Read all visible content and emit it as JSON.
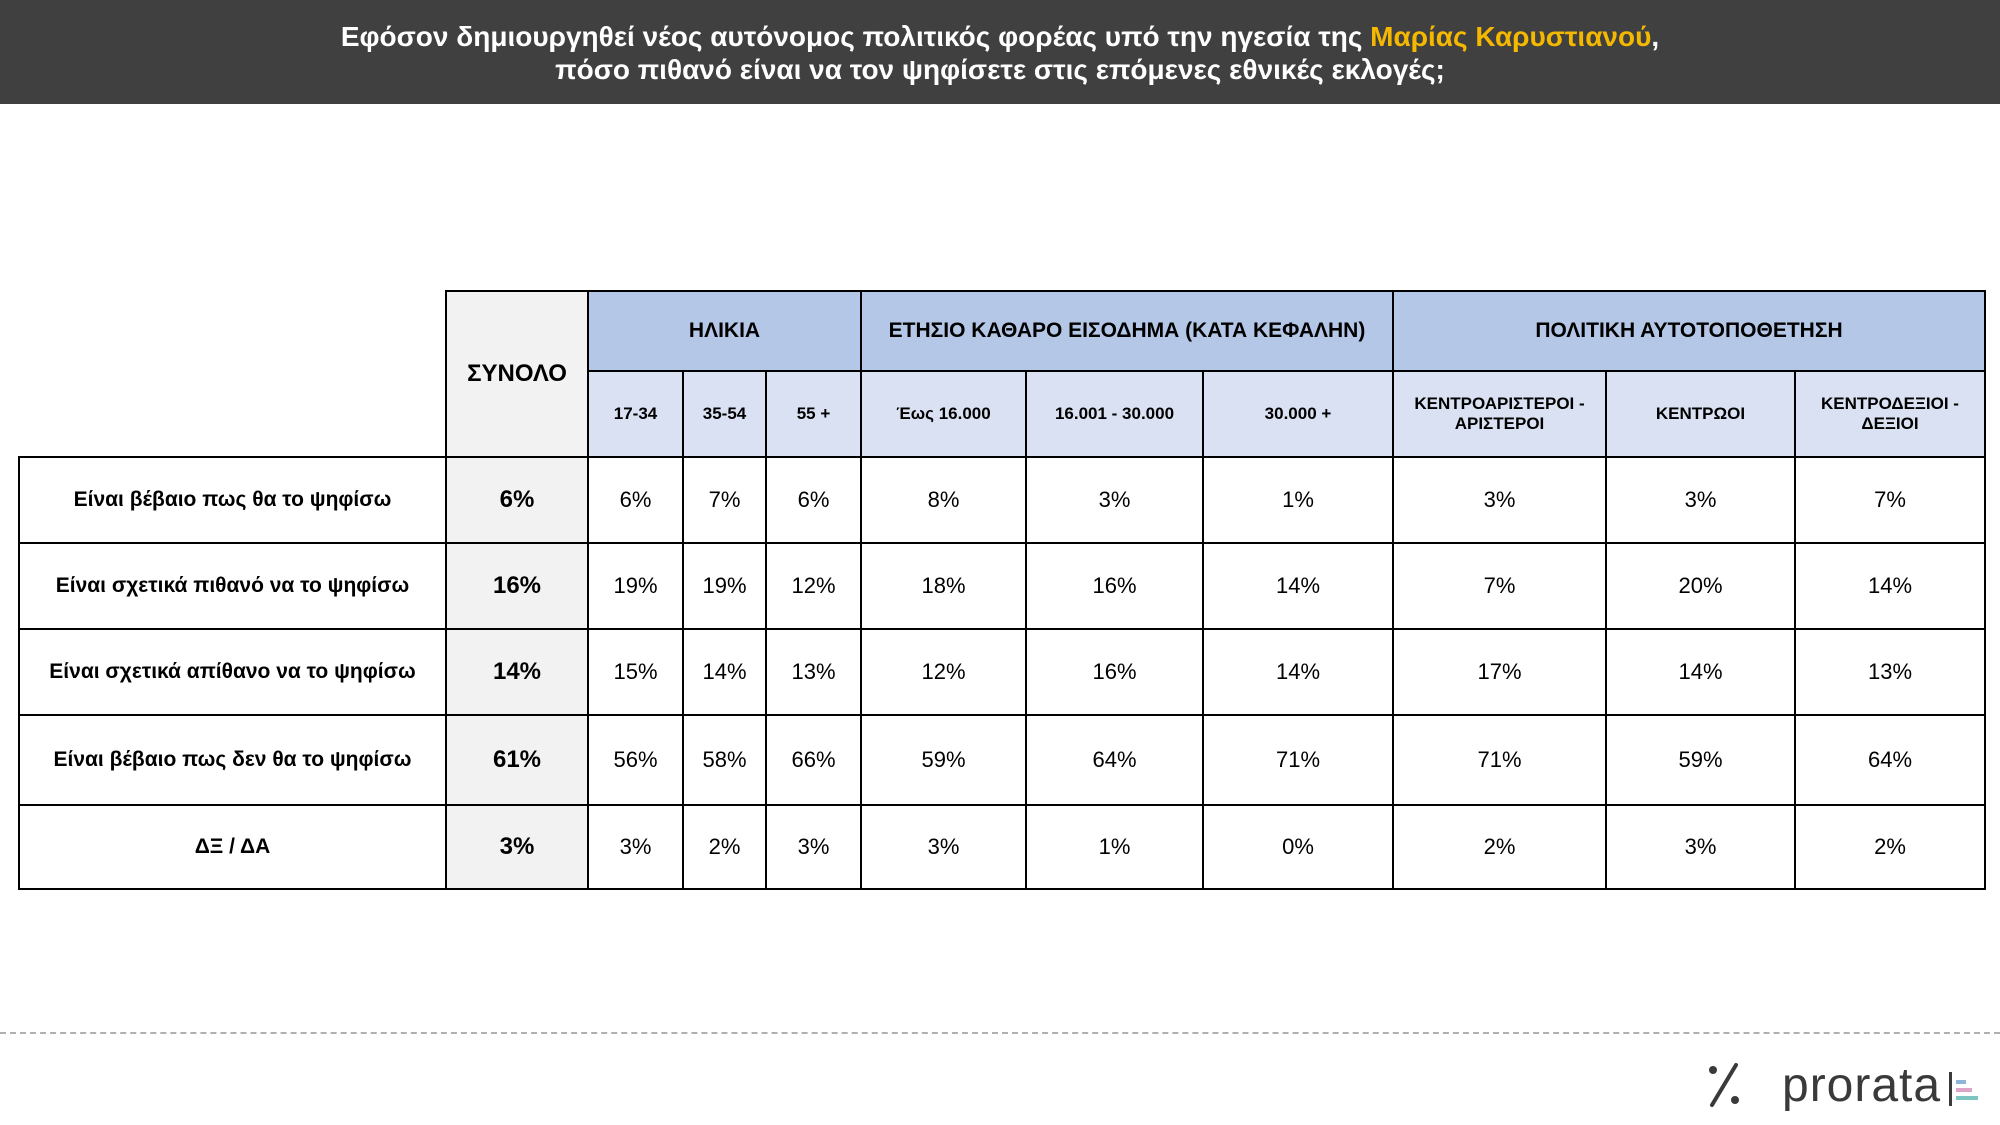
{
  "title": {
    "line1_prefix": "Εφόσον δημιουργηθεί νέος αυτόνομος πολιτικός φορέας υπό την ηγεσία της",
    "line1_highlight": "Μαρίας Καρυστιανού",
    "line1_suffix": ",",
    "line2": "πόσο πιθανό είναι να τον ψηφίσετε στις επόμενες εθνικές εκλογές;",
    "highlight_color": "#f5b800"
  },
  "logo": {
    "text": "prorata",
    "symbol": "%"
  },
  "colors": {
    "header_bar": "#404040",
    "group_header": "#b4c7e7",
    "sub_header": "#d9e1f2",
    "total_column": "#f2f2f2"
  },
  "chart_data": {
    "type": "table",
    "total_label": "ΣΥΝΟΛΟ",
    "groups": [
      {
        "label": "ΗΛΙΚΙΑ",
        "columns": [
          "17-34",
          "35-54",
          "55 +"
        ]
      },
      {
        "label": "ΕΤΗΣΙΟ ΚΑΘΑΡΟ ΕΙΣΟΔΗΜΑ (ΚΑΤΑ ΚΕΦΑΛΗΝ)",
        "columns": [
          "Έως 16.000",
          "16.001 - 30.000",
          "30.000 +"
        ]
      },
      {
        "label": "ΠΟΛΙΤΙΚΗ ΑΥΤΟΤΟΠΟΘΕΤΗΣΗ",
        "columns": [
          "ΚΕΝΤΡΟΑΡΙΣΤΕΡΟΙ - ΑΡΙΣΤΕΡΟΙ",
          "ΚΕΝΤΡΩΟΙ",
          "ΚΕΝΤΡΟΔΕΞΙΟΙ - ΔΕΞΙΟΙ"
        ]
      }
    ],
    "rows": [
      {
        "label": "Είναι βέβαιο πως θα το ψηφίσω",
        "total": "6%",
        "values": [
          "6%",
          "7%",
          "6%",
          "8%",
          "3%",
          "1%",
          "3%",
          "3%",
          "7%"
        ]
      },
      {
        "label": "Είναι σχετικά πιθανό να το ψηφίσω",
        "total": "16%",
        "values": [
          "19%",
          "19%",
          "12%",
          "18%",
          "16%",
          "14%",
          "7%",
          "20%",
          "14%"
        ]
      },
      {
        "label": "Είναι σχετικά απίθανο να το ψηφίσω",
        "total": "14%",
        "values": [
          "15%",
          "14%",
          "13%",
          "12%",
          "16%",
          "14%",
          "17%",
          "14%",
          "13%"
        ]
      },
      {
        "label": "Είναι βέβαιο πως δεν θα το ψηφίσω",
        "total": "61%",
        "values": [
          "56%",
          "58%",
          "66%",
          "59%",
          "64%",
          "71%",
          "71%",
          "59%",
          "64%"
        ]
      },
      {
        "label": "ΔΞ / ΔΑ",
        "total": "3%",
        "values": [
          "3%",
          "2%",
          "3%",
          "3%",
          "1%",
          "0%",
          "2%",
          "3%",
          "2%"
        ]
      }
    ]
  }
}
